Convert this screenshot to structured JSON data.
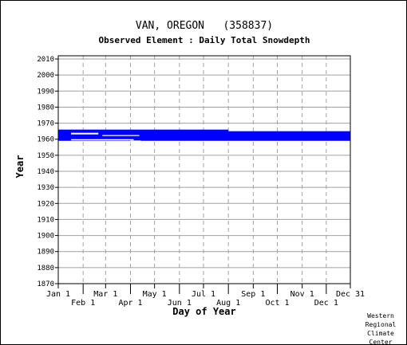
{
  "station_title": "VAN, OREGON   (358837)",
  "chart_data": {
    "type": "bar",
    "title": "Observed Element : Daily Total Snowdepth",
    "xlabel": "Day of Year",
    "ylabel": "Year",
    "xlim": [
      1,
      365
    ],
    "ylim": [
      1870,
      2012
    ],
    "yticks": [
      2010,
      2000,
      1990,
      1980,
      1970,
      1960,
      1950,
      1940,
      1930,
      1920,
      1910,
      1900,
      1890,
      1880,
      1870
    ],
    "xticks_top": [
      {
        "label": "Jan 1",
        "day": 1
      },
      {
        "label": "Mar 1",
        "day": 60
      },
      {
        "label": "May 1",
        "day": 121
      },
      {
        "label": "Jul 1",
        "day": 182
      },
      {
        "label": "Sep 1",
        "day": 244
      },
      {
        "label": "Nov 1",
        "day": 305
      },
      {
        "label": "Dec 31",
        "day": 365
      }
    ],
    "xticks_bottom": [
      {
        "label": "Feb 1",
        "day": 32
      },
      {
        "label": "Apr 1",
        "day": 91
      },
      {
        "label": "Jun 1",
        "day": 152
      },
      {
        "label": "Aug 1",
        "day": 213
      },
      {
        "label": "Oct 1",
        "day": 274
      },
      {
        "label": "Dec 1",
        "day": 335
      }
    ],
    "grid": true,
    "series_color": "#0000ff",
    "data_coverage": [
      {
        "day_start": 1,
        "day_end": 365,
        "year_start": 1959,
        "year_end": 1965
      },
      {
        "day_start": 1,
        "day_end": 213,
        "year_start": 1963,
        "year_end": 1966
      }
    ],
    "gaps": [
      {
        "day_start": 17,
        "day_end": 51,
        "year_start": 1963,
        "year_end": 1964
      },
      {
        "day_start": 56,
        "day_end": 102,
        "year_start": 1962,
        "year_end": 1962.6
      },
      {
        "day_start": 17,
        "day_end": 95,
        "year_start": 1959.3,
        "year_end": 1960
      },
      {
        "day_start": 91,
        "day_end": 104,
        "year_start": 1957,
        "year_end": 1959.2
      }
    ]
  },
  "credit": [
    "Western",
    "Regional",
    "Climate",
    "Center"
  ]
}
